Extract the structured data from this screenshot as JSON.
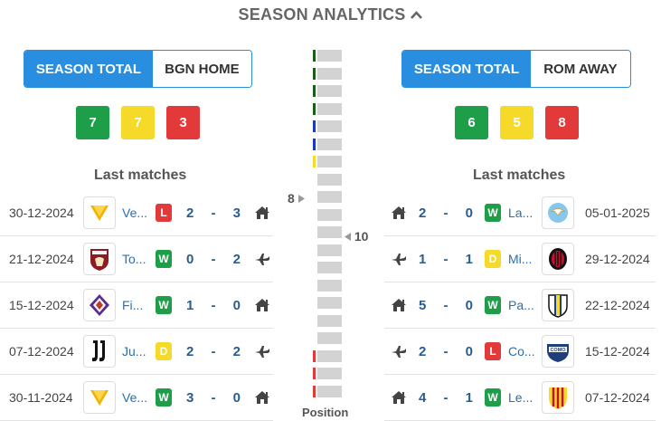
{
  "header": {
    "title": "SEASON ANALYTICS",
    "caret_icon": "chevron-up-icon"
  },
  "left": {
    "toggle": {
      "active": "SEASON TOTAL",
      "other": "BGN HOME"
    },
    "counts": {
      "wins": "7",
      "draws": "7",
      "losses": "3"
    },
    "last_title": "Last matches",
    "matches": [
      {
        "date": "30-12-2024",
        "team": "Ve...",
        "logo": "venezia",
        "result": "L",
        "home": "2",
        "away": "3",
        "venue": "home-icon"
      },
      {
        "date": "21-12-2024",
        "team": "To...",
        "logo": "torino",
        "result": "W",
        "home": "0",
        "away": "2",
        "venue": "plane-icon"
      },
      {
        "date": "15-12-2024",
        "team": "Fi...",
        "logo": "fiorentina",
        "result": "W",
        "home": "1",
        "away": "0",
        "venue": "home-icon"
      },
      {
        "date": "07-12-2024",
        "team": "Ju...",
        "logo": "juventus",
        "result": "D",
        "home": "2",
        "away": "2",
        "venue": "plane-icon"
      },
      {
        "date": "30-11-2024",
        "team": "Ve...",
        "logo": "venezia",
        "result": "W",
        "home": "3",
        "away": "0",
        "venue": "home-icon"
      }
    ]
  },
  "right": {
    "toggle": {
      "active": "SEASON TOTAL",
      "other": "ROM AWAY"
    },
    "counts": {
      "wins": "6",
      "draws": "5",
      "losses": "8"
    },
    "last_title": "Last matches",
    "matches": [
      {
        "date": "05-01-2025",
        "team": "La...",
        "logo": "lazio",
        "result": "W",
        "home": "2",
        "away": "0",
        "venue": "home-icon"
      },
      {
        "date": "29-12-2024",
        "team": "Mi...",
        "logo": "milan",
        "result": "D",
        "home": "1",
        "away": "1",
        "venue": "plane-icon"
      },
      {
        "date": "22-12-2024",
        "team": "Pa...",
        "logo": "parma",
        "result": "W",
        "home": "5",
        "away": "0",
        "venue": "home-icon"
      },
      {
        "date": "15-12-2024",
        "team": "Co...",
        "logo": "como",
        "result": "L",
        "home": "2",
        "away": "0",
        "venue": "plane-icon"
      },
      {
        "date": "07-12-2024",
        "team": "Le...",
        "logo": "lecce",
        "result": "W",
        "home": "4",
        "away": "1",
        "venue": "home-icon"
      }
    ]
  },
  "position": {
    "caption": "Position",
    "left_marker": "8",
    "right_marker": "10",
    "total_slots": 20,
    "left_team_position": 8,
    "right_team_position": 10,
    "zone_colors": {
      "cl": "#1a5e1a",
      "el": "#1a37c7",
      "conf": "#f5da2a",
      "releg": "#e2393a"
    }
  },
  "colors": {
    "accent": "#2a8ee0",
    "win": "#1f9e4a",
    "draw": "#f5da2a",
    "loss": "#e2393a"
  }
}
